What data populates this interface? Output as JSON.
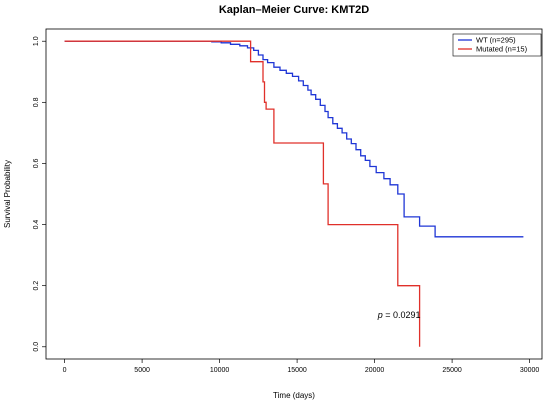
{
  "chart_data": {
    "type": "line",
    "title": "Kaplan–Meier Curve: KMT2D",
    "xlabel": "Time (days)",
    "ylabel": "Survival Probability",
    "xlim": [
      -1200,
      30800
    ],
    "ylim": [
      -0.04,
      1.04
    ],
    "x_ticks": [
      0,
      5000,
      10000,
      15000,
      20000,
      25000,
      30000
    ],
    "x_tick_labels": [
      "0",
      "5000",
      "10000",
      "15000",
      "20000",
      "25000",
      "30000"
    ],
    "y_ticks": [
      0.0,
      0.2,
      0.4,
      0.6,
      0.8,
      1.0
    ],
    "y_tick_labels": [
      "0.0",
      "0.2",
      "0.4",
      "0.6",
      "0.8",
      "1.0"
    ],
    "grid": false,
    "legend_position": "top-right",
    "annotation": {
      "prefix": "p",
      "text": " = 0.0291",
      "x": 20200,
      "y": 0.095
    },
    "series": [
      {
        "name": "WT (n=295)",
        "color": "#1f36d6",
        "step_points": [
          [
            0,
            1.0
          ],
          [
            9500,
            0.998
          ],
          [
            10100,
            0.995
          ],
          [
            10700,
            0.99
          ],
          [
            11300,
            0.985
          ],
          [
            11800,
            0.978
          ],
          [
            12200,
            0.97
          ],
          [
            12500,
            0.955
          ],
          [
            12800,
            0.94
          ],
          [
            13100,
            0.93
          ],
          [
            13500,
            0.915
          ],
          [
            13900,
            0.905
          ],
          [
            14300,
            0.895
          ],
          [
            14700,
            0.885
          ],
          [
            15100,
            0.87
          ],
          [
            15400,
            0.855
          ],
          [
            15700,
            0.84
          ],
          [
            15900,
            0.825
          ],
          [
            16200,
            0.81
          ],
          [
            16500,
            0.79
          ],
          [
            16800,
            0.77
          ],
          [
            17000,
            0.75
          ],
          [
            17300,
            0.73
          ],
          [
            17600,
            0.715
          ],
          [
            17900,
            0.7
          ],
          [
            18200,
            0.68
          ],
          [
            18500,
            0.665
          ],
          [
            18800,
            0.645
          ],
          [
            19100,
            0.625
          ],
          [
            19400,
            0.61
          ],
          [
            19700,
            0.59
          ],
          [
            20100,
            0.57
          ],
          [
            20600,
            0.55
          ],
          [
            21000,
            0.53
          ],
          [
            21500,
            0.5
          ],
          [
            21900,
            0.425
          ],
          [
            22900,
            0.395
          ],
          [
            23900,
            0.36
          ],
          [
            29600,
            0.36
          ]
        ]
      },
      {
        "name": "Mutated (n=15)",
        "color": "#e0302a",
        "step_points": [
          [
            0,
            1.0
          ],
          [
            12000,
            0.933
          ],
          [
            12800,
            0.867
          ],
          [
            12900,
            0.8
          ],
          [
            13000,
            0.778
          ],
          [
            13500,
            0.667
          ],
          [
            16700,
            0.533
          ],
          [
            17000,
            0.4
          ],
          [
            21500,
            0.2
          ],
          [
            22900,
            0.0
          ]
        ]
      }
    ]
  }
}
